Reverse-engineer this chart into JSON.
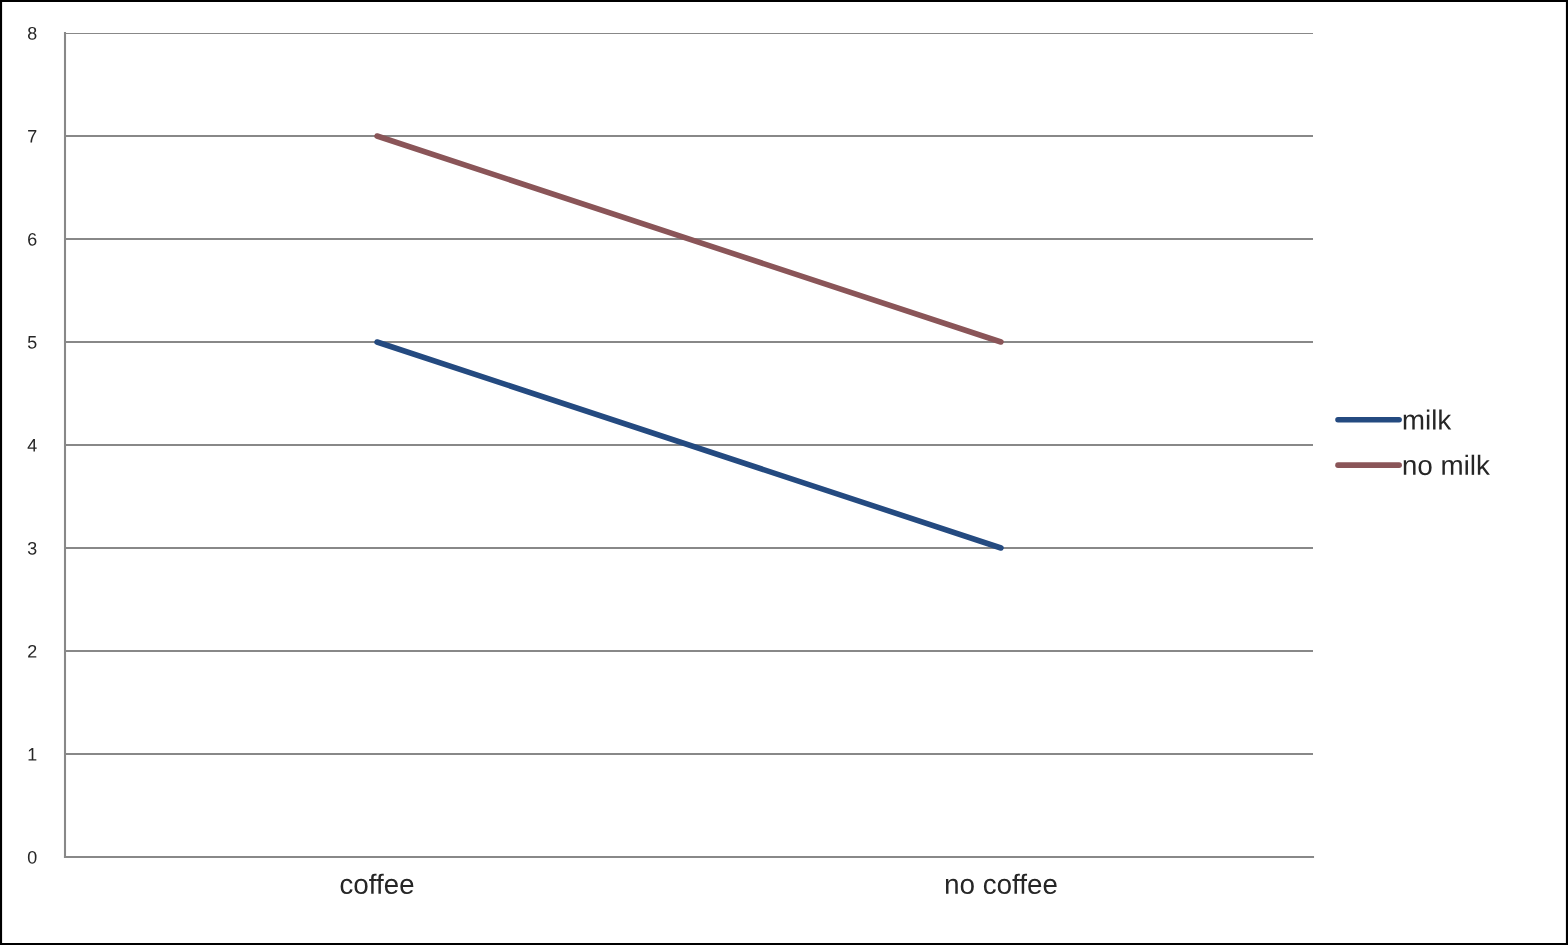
{
  "chart_data": {
    "type": "line",
    "categories": [
      "coffee",
      "no coffee"
    ],
    "series": [
      {
        "name": "milk",
        "color": "#244a80",
        "values": [
          5,
          3
        ]
      },
      {
        "name": "no milk",
        "color": "#8a5558",
        "values": [
          7,
          5
        ]
      }
    ],
    "ylim": [
      0,
      8
    ],
    "yticks": [
      0,
      1,
      2,
      3,
      4,
      5,
      6,
      7,
      8
    ],
    "grid": "y",
    "legend": "right",
    "marker": "none",
    "line_style": "solid"
  }
}
